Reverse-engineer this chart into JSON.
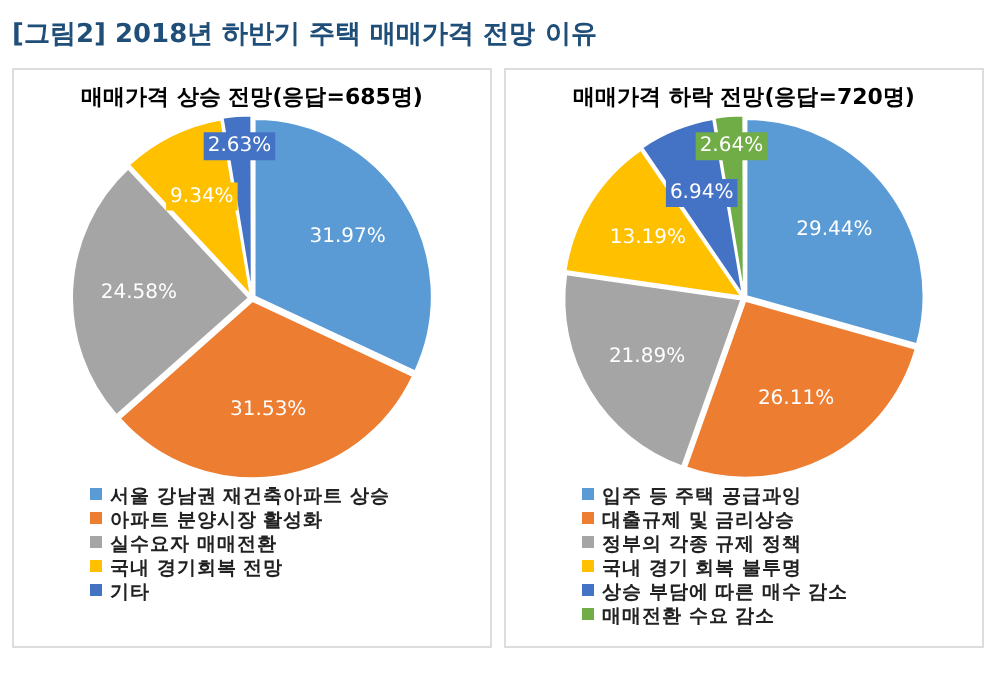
{
  "chart_data": [
    {
      "type": "pie",
      "title": "[그림2] 2018년 하반기 주택 매매가격 전망 이유",
      "subtitle": "매매가격 상승 전망(응답=685명)",
      "categories": [
        "서울 강남권 재건축아파트 상승",
        "아파트 분양시장 활성화",
        "실수요자 매매전환",
        "국내 경기회복 전망",
        "기타"
      ],
      "values": [
        31.97,
        31.53,
        24.58,
        9.34,
        2.63
      ],
      "value_labels": [
        "31.97%",
        "31.53%",
        "24.58%",
        "9.34%",
        "2.63%"
      ],
      "colors": [
        "#5b9bd5",
        "#ed7d31",
        "#a5a5a5",
        "#ffc000",
        "#4472c4"
      ],
      "legend": "bottom"
    },
    {
      "type": "pie",
      "title": "매매가격 하락 전망(응답=720명)",
      "categories": [
        "입주 등 주택 공급과잉",
        "대출규제 및 금리상승",
        "정부의 각종 규제 정책",
        "국내 경기 회복 불투명",
        "상승 부담에 따른 매수 감소",
        "매매전환 수요 감소"
      ],
      "values": [
        29.44,
        26.11,
        21.89,
        13.19,
        6.94,
        2.64
      ],
      "value_labels": [
        "29.44%",
        "26.11%",
        "21.89%",
        "13.19%",
        "6.94%",
        "2.64%"
      ],
      "colors": [
        "#5b9bd5",
        "#ed7d31",
        "#a5a5a5",
        "#ffc000",
        "#4472c4",
        "#70ad47"
      ],
      "legend": "bottom"
    }
  ]
}
